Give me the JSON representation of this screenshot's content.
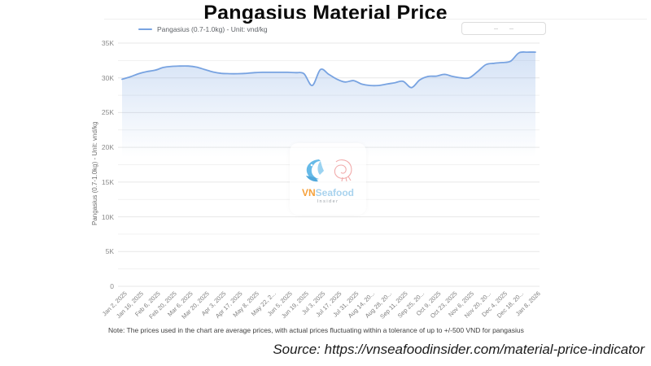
{
  "page": {
    "title": "Pangasius Material Price",
    "note": "Note: The prices used in the chart are average prices, with actual prices fluctuating within a tolerance of up to +/-500 VND for pangasius",
    "source": "Source: https://vnseafoodinsider.com/material-price-indicator"
  },
  "watermark": {
    "brand_vn": "VN",
    "brand_seafood": "Seafood",
    "brand_sub": "Insider",
    "colors": {
      "vn": "#f6a13b",
      "seafood": "#a9d3ee",
      "sub": "#9aa0a6",
      "fish": "#56b3e6",
      "shrimp": "#f0a3a3"
    }
  },
  "chart_data": {
    "type": "line",
    "area": true,
    "title": "Pangasius Material Price",
    "legend": [
      "Pangasius (0.7-1.0kg) - Unit: vnd/kg"
    ],
    "legend_position": "top-left",
    "ylabel": "Pangasius (0.7-1.0kg) - Unit: vnd/kg",
    "xlabel": "",
    "unit": "thousand VND/kg",
    "ylim": [
      0,
      35
    ],
    "y_tick_labels": [
      "0",
      "5K",
      "10K",
      "15K",
      "20K",
      "25K",
      "30K",
      "35K"
    ],
    "y_label_step": 5,
    "y_grid_step": 2.5,
    "grid": true,
    "points_per_label": 2,
    "x_labels": [
      "Jan 2, 2025",
      "Jan 16, 2025",
      "Feb 6, 2025",
      "Feb 20, 2025",
      "Mar 6, 2025",
      "Mar 20, 2025",
      "Apr 3, 2025",
      "Apr 17, 2025",
      "May 8, 2025",
      "May 22, 2...",
      "Jun 5, 2025",
      "Jun 19, 2025",
      "Jul 3, 2025",
      "Jul 17, 2025",
      "Jul 31, 2025",
      "Aug 14, 20...",
      "Aug 28, 20...",
      "Sep 11, 2025",
      "Sep 25, 20...",
      "Oct 9, 2025",
      "Oct 23, 2025",
      "Nov 6, 2025",
      "Nov 20, 20...",
      "Dec 4, 2025",
      "Dec 18, 20...",
      "Jan 8, 2026"
    ],
    "series": [
      {
        "name": "Pangasius (0.7-1.0kg) - Unit: vnd/kg",
        "color": "#78a3e1",
        "area_color": "rgba(120,163,225,0.30)",
        "values": [
          29.8,
          30.15,
          30.6,
          30.9,
          31.1,
          31.5,
          31.65,
          31.7,
          31.7,
          31.55,
          31.2,
          30.85,
          30.65,
          30.6,
          30.6,
          30.65,
          30.75,
          30.8,
          30.8,
          30.8,
          30.8,
          30.75,
          30.6,
          28.9,
          31.2,
          30.5,
          29.8,
          29.4,
          29.6,
          29.1,
          28.9,
          28.9,
          29.1,
          29.3,
          29.5,
          28.6,
          29.7,
          30.2,
          30.25,
          30.5,
          30.2,
          30.0,
          30.0,
          30.9,
          31.9,
          32.1,
          32.2,
          32.4,
          33.6,
          33.7,
          33.7
        ]
      }
    ],
    "grid_color": "#ececec",
    "axis_text_color": "#8a8a8a"
  }
}
